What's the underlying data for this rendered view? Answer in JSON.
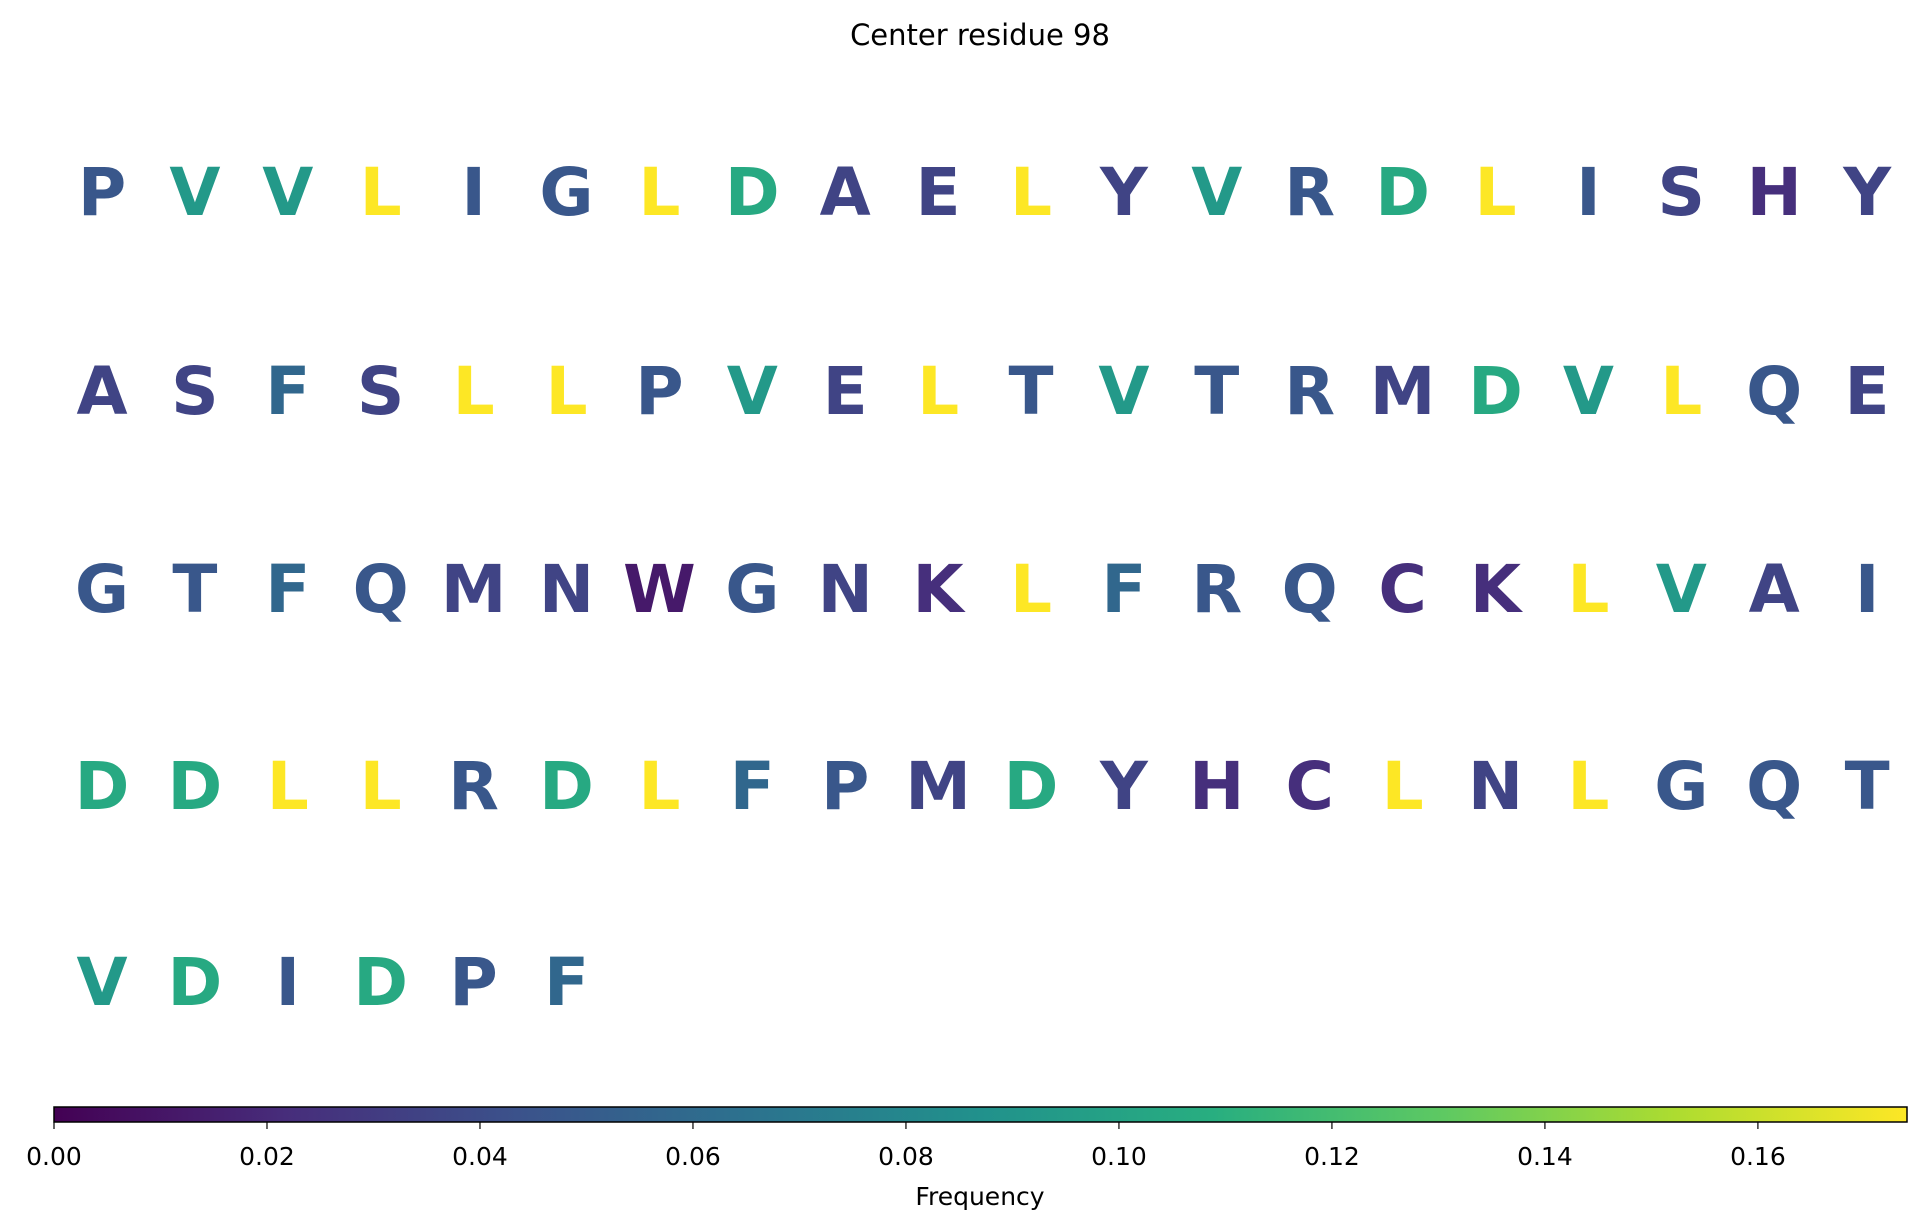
{
  "chart_data": {
    "type": "letter-heatmap",
    "title": "Center residue 98",
    "categories": [
      "P",
      "V",
      "V",
      "L",
      "I",
      "G",
      "L",
      "D",
      "A",
      "E",
      "L",
      "Y",
      "V",
      "R",
      "D",
      "L",
      "I",
      "S",
      "H",
      "Y",
      "A",
      "S",
      "F",
      "S",
      "L",
      "L",
      "P",
      "V",
      "E",
      "L",
      "T",
      "V",
      "T",
      "R",
      "M",
      "D",
      "V",
      "L",
      "Q",
      "E",
      "G",
      "T",
      "F",
      "Q",
      "M",
      "N",
      "W",
      "G",
      "N",
      "K",
      "L",
      "F",
      "R",
      "Q",
      "C",
      "K",
      "L",
      "V",
      "A",
      "I",
      "D",
      "D",
      "L",
      "L",
      "R",
      "D",
      "L",
      "F",
      "P",
      "M",
      "D",
      "Y",
      "H",
      "C",
      "L",
      "N",
      "L",
      "G",
      "Q",
      "T",
      "V",
      "D",
      "I",
      "D",
      "P",
      "F"
    ],
    "values": [
      0.047,
      0.093,
      0.093,
      0.174,
      0.047,
      0.047,
      0.174,
      0.105,
      0.035,
      0.035,
      0.174,
      0.035,
      0.093,
      0.047,
      0.105,
      0.174,
      0.047,
      0.035,
      0.023,
      0.035,
      0.035,
      0.035,
      0.058,
      0.035,
      0.174,
      0.174,
      0.047,
      0.093,
      0.035,
      0.174,
      0.047,
      0.093,
      0.047,
      0.047,
      0.035,
      0.105,
      0.093,
      0.174,
      0.047,
      0.035,
      0.047,
      0.047,
      0.058,
      0.047,
      0.035,
      0.035,
      0.012,
      0.047,
      0.035,
      0.023,
      0.174,
      0.058,
      0.047,
      0.047,
      0.023,
      0.023,
      0.174,
      0.093,
      0.035,
      0.047,
      0.105,
      0.105,
      0.174,
      0.174,
      0.047,
      0.105,
      0.174,
      0.058,
      0.047,
      0.035,
      0.105,
      0.035,
      0.023,
      0.023,
      0.174,
      0.035,
      0.174,
      0.047,
      0.047,
      0.047,
      0.093,
      0.105,
      0.047,
      0.105,
      0.047,
      0.058
    ],
    "colormap": "viridis",
    "colorbar": {
      "label": "Frequency",
      "lim": [
        0,
        0.174
      ],
      "ticks": [
        {
          "value": 0,
          "label": "0.00"
        },
        {
          "value": 0.02,
          "label": "0.02"
        },
        {
          "value": 0.04,
          "label": "0.04"
        },
        {
          "value": 0.06,
          "label": "0.06"
        },
        {
          "value": 0.08,
          "label": "0.08"
        },
        {
          "value": 0.1,
          "label": "0.10"
        },
        {
          "value": 0.12,
          "label": "0.12"
        },
        {
          "value": 0.14,
          "label": "0.14"
        },
        {
          "value": 0.16,
          "label": "0.16"
        }
      ]
    }
  }
}
